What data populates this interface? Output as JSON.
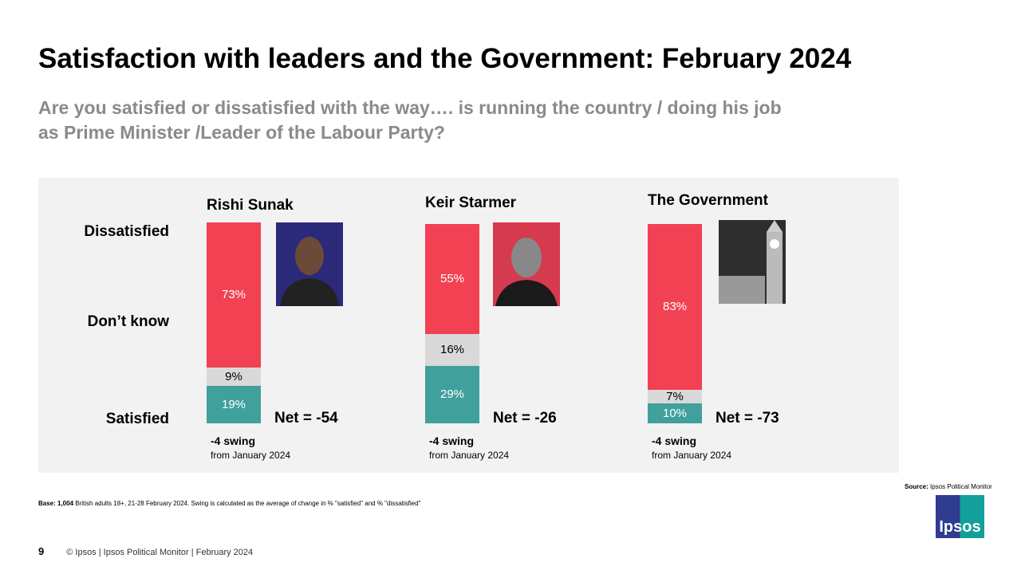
{
  "title": "Satisfaction with leaders and the Government: February 2024",
  "subtitle_line1": "Are you satisfied or dissatisfied with the way…. is running the country / doing his job",
  "subtitle_line2": "as Prime Minister /Leader of the Labour Party?",
  "chart_data": {
    "type": "bar",
    "stacked": true,
    "row_labels": [
      "Dissatisfied",
      "Don’t know",
      "Satisfied"
    ],
    "categories": [
      "Rishi Sunak",
      "Keir Starmer",
      "The Government"
    ],
    "series": [
      {
        "name": "Satisfied",
        "values": [
          19,
          29,
          10
        ],
        "labels": [
          "19%",
          "29%",
          "10%"
        ]
      },
      {
        "name": "Don’t know",
        "values": [
          9,
          16,
          7
        ],
        "labels": [
          "9%",
          "16%",
          "7%"
        ]
      },
      {
        "name": "Dissatisfied",
        "values": [
          73,
          55,
          83
        ],
        "labels": [
          "73%",
          "55%",
          "83%"
        ]
      }
    ],
    "net": [
      "Net = -54",
      "Net = -26",
      "Net = -73"
    ],
    "swing": [
      "-4 swing",
      "-4 swing",
      "-4 swing"
    ],
    "swing_from": [
      "from January 2024",
      "from January 2024",
      "from January 2024"
    ],
    "colors": {
      "Dissatisfied": "#f24153",
      "Don’t know": "#d9d9d9",
      "Satisfied": "#40a09c"
    }
  },
  "base_bold": "Base: 1,004",
  "base_text": " British adults 18+, 21-28 February 2024. Swing is calculated as the average of change in % \"satisfied\" and % \"dissatisfied\"",
  "source_bold": "Source:",
  "source_text": " Ipsos Political Monitor",
  "page_number": "9",
  "footer": "© Ipsos | Ipsos Political Monitor | February 2024",
  "logo_text": "Ipsos"
}
